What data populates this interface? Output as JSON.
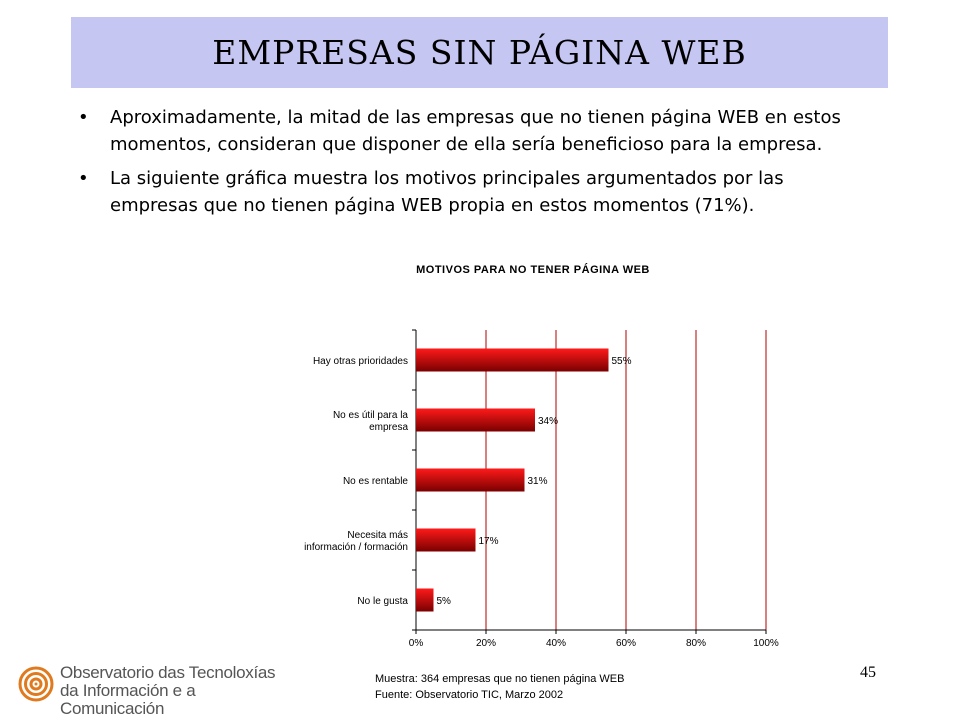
{
  "slide": {
    "title": "EMPRESAS SIN PÁGINA WEB",
    "bullets": [
      "Aproximadamente, la mitad de las empresas que no tienen página WEB en estos momentos, consideran que disponer de ella sería beneficioso para la empresa.",
      "La siguiente gráfica muestra los motivos principales argumentados por las empresas que no tienen página WEB propia en estos momentos (71%)."
    ],
    "bullet_symbol": "•",
    "footnote_lines": [
      "Muestra: 364 empresas que no tienen página WEB",
      "Fuente: Observatorio TIC,  Marzo 2002"
    ],
    "page_number": "45",
    "logo": {
      "line1": "Observatorio das Tecnoloxías",
      "line2": "da Información e a Comunicación"
    }
  },
  "chart_data": {
    "type": "bar",
    "orientation": "horizontal",
    "title": "MOTIVOS PARA NO TENER PÁGINA WEB",
    "categories": [
      [
        "Hay otras prioridades"
      ],
      [
        "No es útil para la",
        "empresa"
      ],
      [
        "No es rentable"
      ],
      [
        "Necesita más",
        "información / formación"
      ],
      [
        "No le gusta"
      ]
    ],
    "values": [
      55,
      34,
      31,
      17,
      5
    ],
    "value_labels": [
      "55%",
      "34%",
      "31%",
      "17%",
      "5%"
    ],
    "xlim": [
      0,
      100
    ],
    "xticks": [
      "0%",
      "20%",
      "40%",
      "60%",
      "80%",
      "100%"
    ],
    "grid": "vertical",
    "colors": {
      "bar_top": "#ff1a1a",
      "bar_bottom": "#7a0000",
      "grid": "#b00000"
    }
  }
}
